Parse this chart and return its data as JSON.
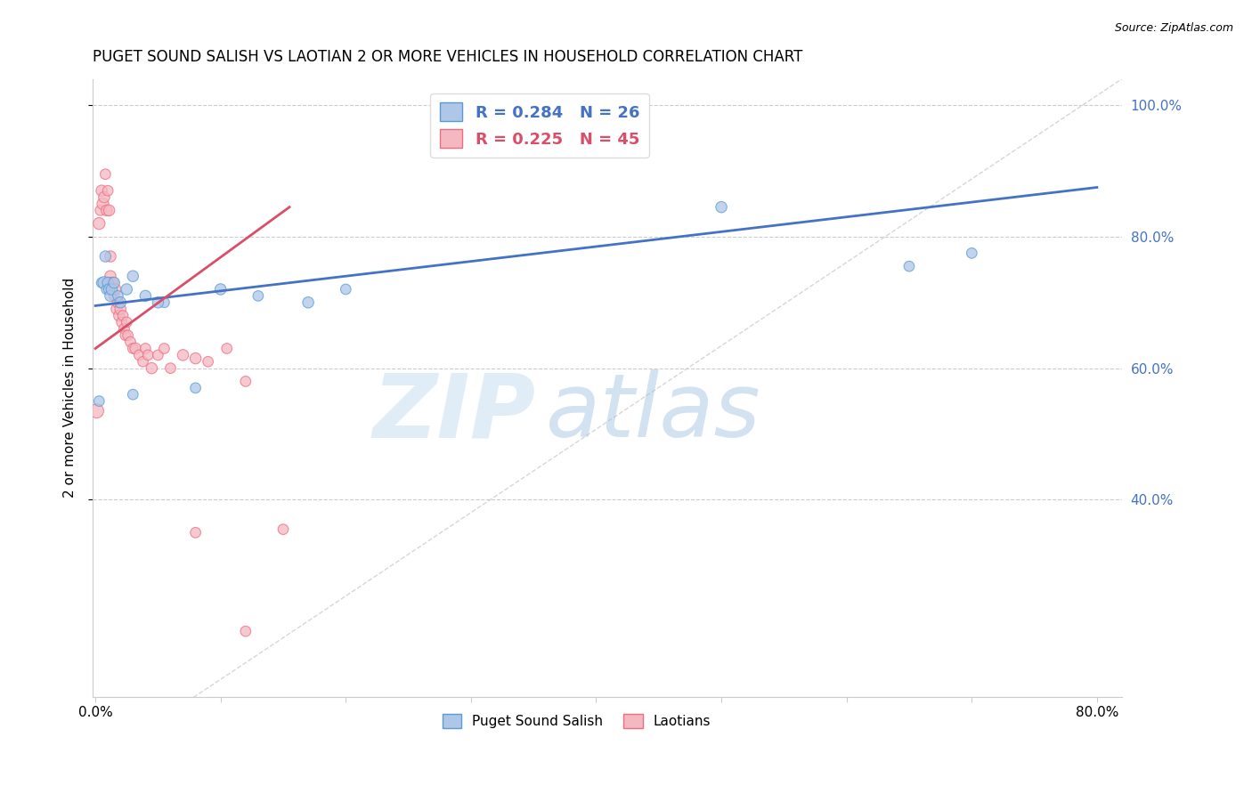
{
  "title": "PUGET SOUND SALISH VS LAOTIAN 2 OR MORE VEHICLES IN HOUSEHOLD CORRELATION CHART",
  "source": "Source: ZipAtlas.com",
  "ylabel": "2 or more Vehicles in Household",
  "blue_R": 0.284,
  "blue_N": 26,
  "pink_R": 0.225,
  "pink_N": 45,
  "blue_fill": "#aec6e8",
  "pink_fill": "#f4b8c1",
  "blue_edge": "#5b9bd5",
  "pink_edge": "#f06b80",
  "blue_line": "#4472c4",
  "pink_line": "#d94f6a",
  "ref_line_color": "#cccccc",
  "legend_label_blue": "Puget Sound Salish",
  "legend_label_pink": "Laotians",
  "background_color": "#ffffff",
  "grid_color": "#cccccc",
  "right_axis_color": "#4472c4",
  "xlim": [
    -0.002,
    0.82
  ],
  "ylim": [
    0.1,
    1.04
  ],
  "yticks": [
    0.4,
    0.6,
    0.8,
    1.0
  ],
  "xticks": [
    0.0,
    0.1,
    0.2,
    0.3,
    0.4,
    0.5,
    0.6,
    0.7,
    0.8
  ],
  "blue_scatter_x": [
    0.003,
    0.005,
    0.007,
    0.008,
    0.009,
    0.01,
    0.011,
    0.012,
    0.013,
    0.015,
    0.018,
    0.02,
    0.025,
    0.03,
    0.04,
    0.055,
    0.1,
    0.13,
    0.17,
    0.2,
    0.5,
    0.65,
    0.7,
    0.03,
    0.05,
    0.08
  ],
  "blue_scatter_y": [
    0.55,
    0.73,
    0.73,
    0.77,
    0.72,
    0.73,
    0.72,
    0.71,
    0.72,
    0.73,
    0.71,
    0.7,
    0.72,
    0.74,
    0.71,
    0.7,
    0.72,
    0.71,
    0.7,
    0.72,
    0.845,
    0.755,
    0.775,
    0.56,
    0.7,
    0.57
  ],
  "blue_scatter_s": [
    70,
    70,
    100,
    80,
    70,
    80,
    80,
    80,
    80,
    80,
    70,
    80,
    80,
    80,
    80,
    70,
    80,
    70,
    80,
    70,
    80,
    70,
    70,
    70,
    80,
    70
  ],
  "pink_scatter_x": [
    0.001,
    0.003,
    0.004,
    0.005,
    0.006,
    0.007,
    0.008,
    0.009,
    0.01,
    0.011,
    0.012,
    0.012,
    0.013,
    0.014,
    0.015,
    0.016,
    0.017,
    0.018,
    0.019,
    0.02,
    0.021,
    0.022,
    0.023,
    0.024,
    0.025,
    0.026,
    0.028,
    0.03,
    0.032,
    0.035,
    0.038,
    0.04,
    0.042,
    0.045,
    0.05,
    0.055,
    0.06,
    0.07,
    0.08,
    0.09,
    0.105,
    0.12,
    0.15,
    0.08,
    0.12
  ],
  "pink_scatter_y": [
    0.535,
    0.82,
    0.84,
    0.87,
    0.85,
    0.86,
    0.895,
    0.84,
    0.87,
    0.84,
    0.77,
    0.74,
    0.73,
    0.73,
    0.71,
    0.72,
    0.69,
    0.7,
    0.68,
    0.69,
    0.67,
    0.68,
    0.66,
    0.65,
    0.67,
    0.65,
    0.64,
    0.63,
    0.63,
    0.62,
    0.61,
    0.63,
    0.62,
    0.6,
    0.62,
    0.63,
    0.6,
    0.62,
    0.615,
    0.61,
    0.63,
    0.58,
    0.355,
    0.35,
    0.2
  ],
  "pink_scatter_s": [
    130,
    90,
    70,
    80,
    90,
    80,
    70,
    80,
    70,
    80,
    80,
    80,
    80,
    80,
    70,
    80,
    80,
    80,
    80,
    80,
    70,
    70,
    70,
    70,
    70,
    70,
    70,
    70,
    80,
    70,
    70,
    70,
    70,
    80,
    70,
    70,
    70,
    80,
    80,
    70,
    70,
    70,
    70,
    70,
    70
  ],
  "blue_trend": [
    0.0,
    0.695,
    0.8,
    0.875
  ],
  "pink_trend": [
    0.0,
    0.63,
    0.155,
    0.845
  ],
  "ref_diag": [
    0.0,
    0.0,
    0.82,
    1.04
  ]
}
